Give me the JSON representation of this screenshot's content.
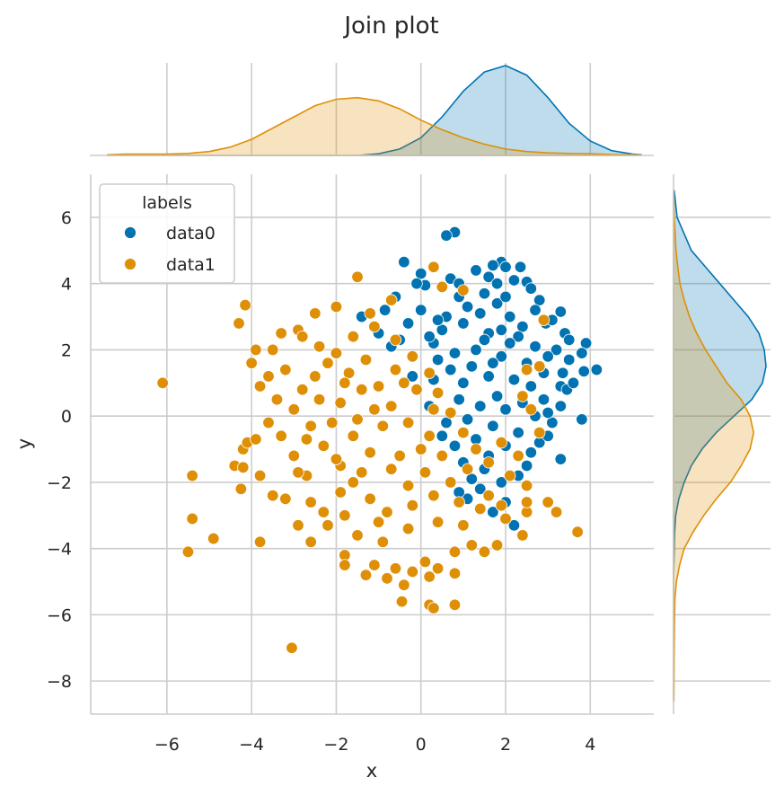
{
  "chart_data": {
    "type": "scatter",
    "title": "Join plot",
    "xlabel": "x",
    "ylabel": "y",
    "xlim": [
      -7.8,
      5.5
    ],
    "ylim": [
      -9.0,
      7.3
    ],
    "xticks": [
      -6,
      -4,
      -2,
      0,
      2,
      4
    ],
    "yticks": [
      6,
      4,
      2,
      0,
      -2,
      -4,
      -6,
      -8
    ],
    "xtick_labels": [
      "−6",
      "−4",
      "−2",
      "0",
      "2",
      "4"
    ],
    "ytick_labels": [
      "6",
      "4",
      "2",
      "0",
      "−2",
      "−4",
      "−6",
      "−8"
    ],
    "grid": true,
    "legend": {
      "title": "labels",
      "position": "top-left"
    },
    "series": [
      {
        "name": "data0",
        "color": "#0173b2",
        "points": [
          [
            0.8,
            5.55
          ],
          [
            0.6,
            5.45
          ],
          [
            -0.4,
            4.65
          ],
          [
            1.9,
            4.65
          ],
          [
            2.0,
            4.5
          ],
          [
            1.7,
            4.55
          ],
          [
            2.35,
            4.5
          ],
          [
            1.3,
            4.4
          ],
          [
            0.0,
            4.3
          ],
          [
            2.2,
            4.1
          ],
          [
            0.7,
            4.15
          ],
          [
            1.6,
            4.2
          ],
          [
            2.5,
            4.05
          ],
          [
            1.8,
            4.0
          ],
          [
            2.6,
            3.85
          ],
          [
            0.1,
            3.95
          ],
          [
            -0.6,
            3.6
          ],
          [
            1.5,
            3.7
          ],
          [
            0.9,
            3.6
          ],
          [
            2.8,
            3.5
          ],
          [
            3.3,
            3.15
          ],
          [
            -0.85,
            3.2
          ],
          [
            -1.4,
            3.0
          ],
          [
            2.95,
            2.8
          ],
          [
            3.1,
            2.9
          ],
          [
            -1.0,
            2.5
          ],
          [
            3.4,
            2.5
          ],
          [
            3.5,
            2.3
          ],
          [
            3.9,
            2.2
          ],
          [
            3.8,
            1.9
          ],
          [
            3.2,
            2.0
          ],
          [
            4.15,
            1.4
          ],
          [
            3.85,
            1.35
          ],
          [
            3.35,
            1.3
          ],
          [
            3.5,
            1.7
          ],
          [
            3.3,
            0.9
          ],
          [
            3.45,
            0.8
          ],
          [
            2.9,
            0.5
          ],
          [
            3.3,
            0.3
          ],
          [
            3.1,
            -0.2
          ],
          [
            3.0,
            0.1
          ],
          [
            3.8,
            -0.1
          ],
          [
            2.8,
            -0.8
          ],
          [
            2.6,
            -1.1
          ],
          [
            3.3,
            -1.3
          ],
          [
            2.3,
            -1.8
          ],
          [
            1.5,
            -1.6
          ],
          [
            1.9,
            -2.0
          ],
          [
            1.4,
            -2.2
          ],
          [
            2.5,
            -2.1
          ],
          [
            2.0,
            -2.6
          ],
          [
            1.7,
            -2.9
          ],
          [
            2.2,
            -3.3
          ],
          [
            1.1,
            -2.5
          ],
          [
            0.9,
            -2.3
          ],
          [
            -0.7,
            2.1
          ],
          [
            0.3,
            2.2
          ],
          [
            1.0,
            2.8
          ],
          [
            0.2,
            2.4
          ],
          [
            0.5,
            2.6
          ],
          [
            1.4,
            3.1
          ],
          [
            1.8,
            3.4
          ],
          [
            2.1,
            3.0
          ],
          [
            2.4,
            2.7
          ],
          [
            1.1,
            3.3
          ],
          [
            0.6,
            3.0
          ],
          [
            -0.3,
            2.8
          ],
          [
            0.0,
            3.2
          ],
          [
            1.6,
            2.5
          ],
          [
            2.3,
            2.4
          ],
          [
            2.7,
            2.1
          ],
          [
            1.3,
            2.0
          ],
          [
            0.8,
            1.9
          ],
          [
            0.4,
            1.7
          ],
          [
            1.9,
            1.8
          ],
          [
            2.5,
            1.6
          ],
          [
            2.9,
            1.3
          ],
          [
            3.0,
            1.8
          ],
          [
            1.2,
            1.5
          ],
          [
            0.7,
            1.4
          ],
          [
            1.6,
            1.2
          ],
          [
            2.2,
            1.1
          ],
          [
            2.6,
            0.9
          ],
          [
            1.0,
            1.0
          ],
          [
            0.3,
            1.1
          ],
          [
            1.8,
            0.6
          ],
          [
            2.4,
            0.4
          ],
          [
            0.9,
            0.5
          ],
          [
            1.4,
            0.3
          ],
          [
            2.0,
            0.2
          ],
          [
            2.7,
            0.0
          ],
          [
            1.1,
            -0.1
          ],
          [
            0.6,
            -0.2
          ],
          [
            1.7,
            -0.3
          ],
          [
            2.3,
            -0.5
          ],
          [
            1.3,
            -0.7
          ],
          [
            0.8,
            -0.9
          ],
          [
            2.0,
            -0.9
          ],
          [
            1.6,
            -1.2
          ],
          [
            1.0,
            -1.4
          ],
          [
            0.5,
            -0.6
          ],
          [
            0.2,
            0.3
          ],
          [
            -0.2,
            1.2
          ],
          [
            -0.5,
            2.3
          ],
          [
            2.0,
            3.6
          ],
          [
            2.7,
            3.2
          ],
          [
            0.9,
            4.0
          ],
          [
            -0.1,
            4.0
          ],
          [
            3.6,
            1.0
          ],
          [
            3.0,
            -0.6
          ],
          [
            2.5,
            -1.5
          ],
          [
            1.2,
            -1.9
          ],
          [
            2.1,
            2.2
          ],
          [
            1.5,
            2.3
          ],
          [
            0.4,
            2.9
          ],
          [
            1.9,
            2.6
          ],
          [
            2.8,
            1.5
          ],
          [
            1.7,
            1.6
          ]
        ]
      },
      {
        "name": "data1",
        "color": "#de8f05",
        "points": [
          [
            -6.1,
            1.0
          ],
          [
            -5.5,
            -4.1
          ],
          [
            -5.4,
            -1.8
          ],
          [
            -5.4,
            -3.1
          ],
          [
            -4.9,
            -3.7
          ],
          [
            -4.4,
            -1.5
          ],
          [
            -4.25,
            -2.2
          ],
          [
            -4.3,
            2.8
          ],
          [
            -4.2,
            -1.0
          ],
          [
            -4.15,
            3.35
          ],
          [
            -4.0,
            1.6
          ],
          [
            -3.9,
            2.0
          ],
          [
            -3.8,
            -3.8
          ],
          [
            -3.8,
            -1.8
          ],
          [
            -4.2,
            -1.55
          ],
          [
            -4.1,
            -0.8
          ],
          [
            -3.3,
            2.5
          ],
          [
            -2.9,
            2.6
          ],
          [
            -3.05,
            -7.0
          ],
          [
            -3.2,
            -2.5
          ],
          [
            -2.6,
            -3.8
          ],
          [
            -2.3,
            -2.9
          ],
          [
            -1.8,
            -4.2
          ],
          [
            -1.8,
            -4.5
          ],
          [
            -1.3,
            -4.8
          ],
          [
            -1.1,
            -4.5
          ],
          [
            -0.8,
            -4.9
          ],
          [
            -0.6,
            -4.6
          ],
          [
            -0.4,
            -5.1
          ],
          [
            -0.2,
            -4.7
          ],
          [
            0.1,
            -4.4
          ],
          [
            0.2,
            -4.85
          ],
          [
            -0.45,
            -5.6
          ],
          [
            0.2,
            -5.7
          ],
          [
            0.3,
            -5.8
          ],
          [
            0.8,
            -5.7
          ],
          [
            0.4,
            -4.6
          ],
          [
            0.8,
            -4.1
          ],
          [
            0.8,
            -4.75
          ],
          [
            1.2,
            -3.9
          ],
          [
            1.5,
            -4.1
          ],
          [
            1.8,
            -3.9
          ],
          [
            2.4,
            -3.6
          ],
          [
            2.0,
            -3.1
          ],
          [
            2.5,
            -2.9
          ],
          [
            2.5,
            -2.6
          ],
          [
            3.2,
            -2.9
          ],
          [
            3.0,
            -2.6
          ],
          [
            3.7,
            -3.5
          ],
          [
            2.5,
            -2.1
          ],
          [
            2.1,
            -1.8
          ],
          [
            1.6,
            -1.4
          ],
          [
            2.3,
            -1.2
          ],
          [
            1.9,
            -0.8
          ],
          [
            2.8,
            -0.5
          ],
          [
            2.6,
            0.2
          ],
          [
            2.4,
            0.6
          ],
          [
            2.8,
            1.5
          ],
          [
            2.5,
            1.4
          ],
          [
            2.9,
            2.9
          ],
          [
            -1.5,
            4.2
          ],
          [
            0.3,
            4.5
          ],
          [
            0.5,
            3.9
          ],
          [
            1.0,
            3.8
          ],
          [
            -0.7,
            3.5
          ],
          [
            -1.2,
            3.1
          ],
          [
            -2.0,
            3.3
          ],
          [
            -2.5,
            3.1
          ],
          [
            -2.8,
            2.4
          ],
          [
            -3.5,
            2.0
          ],
          [
            -3.6,
            1.2
          ],
          [
            -3.8,
            0.9
          ],
          [
            -3.4,
            0.5
          ],
          [
            -3.6,
            -0.2
          ],
          [
            -3.3,
            -0.6
          ],
          [
            -3.0,
            -1.2
          ],
          [
            -2.7,
            -1.8
          ],
          [
            -3.5,
            -2.4
          ],
          [
            -2.6,
            -2.6
          ],
          [
            -2.2,
            -3.3
          ],
          [
            -1.5,
            -3.6
          ],
          [
            -0.9,
            -3.8
          ],
          [
            -0.3,
            -3.4
          ],
          [
            0.4,
            -3.2
          ],
          [
            1.0,
            -3.3
          ],
          [
            1.4,
            -2.8
          ],
          [
            -2.4,
            2.1
          ],
          [
            -2.2,
            1.6
          ],
          [
            -2.5,
            1.2
          ],
          [
            -2.8,
            0.8
          ],
          [
            -3.0,
            0.2
          ],
          [
            -2.6,
            -0.3
          ],
          [
            -2.3,
            -0.9
          ],
          [
            -1.9,
            -1.5
          ],
          [
            -1.6,
            -2.0
          ],
          [
            -1.2,
            -2.5
          ],
          [
            -0.8,
            -2.9
          ],
          [
            -0.2,
            -2.7
          ],
          [
            0.3,
            -2.4
          ],
          [
            0.7,
            -2.0
          ],
          [
            1.1,
            -1.6
          ],
          [
            1.3,
            -1.0
          ],
          [
            1.0,
            -0.5
          ],
          [
            0.7,
            0.1
          ],
          [
            0.4,
            0.7
          ],
          [
            0.2,
            1.3
          ],
          [
            -0.2,
            1.8
          ],
          [
            -0.6,
            2.3
          ],
          [
            -1.1,
            2.7
          ],
          [
            -1.6,
            2.4
          ],
          [
            -2.0,
            1.9
          ],
          [
            -1.7,
            1.3
          ],
          [
            -1.4,
            0.8
          ],
          [
            -1.9,
            0.4
          ],
          [
            -2.1,
            -0.2
          ],
          [
            -1.6,
            -0.6
          ],
          [
            -1.2,
            -1.1
          ],
          [
            -0.7,
            -1.6
          ],
          [
            -0.3,
            -2.1
          ],
          [
            0.1,
            -1.7
          ],
          [
            0.5,
            -1.2
          ],
          [
            0.2,
            -0.6
          ],
          [
            -0.3,
            -0.2
          ],
          [
            -0.7,
            0.3
          ],
          [
            -1.0,
            0.9
          ],
          [
            -0.6,
            1.4
          ],
          [
            -1.3,
            1.7
          ],
          [
            -0.9,
            -0.3
          ],
          [
            -1.5,
            -0.1
          ],
          [
            -1.8,
            1.0
          ],
          [
            -2.4,
            0.5
          ],
          [
            -2.7,
            -0.7
          ],
          [
            -2.0,
            -1.3
          ],
          [
            -1.4,
            -1.7
          ],
          [
            -0.5,
            -1.2
          ],
          [
            0.0,
            -1.0
          ],
          [
            0.3,
            0.2
          ],
          [
            -0.1,
            0.8
          ],
          [
            -0.4,
            1.0
          ],
          [
            -1.1,
            0.2
          ],
          [
            -1.9,
            -2.3
          ],
          [
            -2.9,
            -1.7
          ],
          [
            -3.2,
            1.4
          ],
          [
            -3.9,
            -0.7
          ],
          [
            1.6,
            -2.4
          ],
          [
            1.9,
            -2.7
          ],
          [
            0.9,
            -2.6
          ],
          [
            -1.0,
            -3.2
          ],
          [
            -1.8,
            -3.0
          ],
          [
            -2.9,
            -3.3
          ]
        ]
      }
    ],
    "marginal_x": {
      "grid": [
        -7.4,
        -7.0,
        -6.5,
        -6.0,
        -5.5,
        -5.0,
        -4.5,
        -4.0,
        -3.5,
        -3.0,
        -2.5,
        -2.0,
        -1.5,
        -1.0,
        -0.5,
        0.0,
        0.5,
        1.0,
        1.5,
        2.0,
        2.5,
        3.0,
        3.5,
        4.0,
        4.5,
        5.0,
        5.2
      ],
      "data0": [
        0,
        0,
        0,
        0,
        0,
        0,
        0,
        0,
        0,
        0,
        0,
        0,
        0,
        0.005,
        0.02,
        0.055,
        0.12,
        0.2,
        0.26,
        0.28,
        0.25,
        0.18,
        0.1,
        0.045,
        0.015,
        0.004,
        0.002
      ],
      "data1": [
        0.002,
        0.004,
        0.004,
        0.004,
        0.006,
        0.012,
        0.026,
        0.05,
        0.085,
        0.12,
        0.155,
        0.175,
        0.18,
        0.17,
        0.145,
        0.11,
        0.08,
        0.055,
        0.035,
        0.02,
        0.012,
        0.008,
        0.006,
        0.005,
        0.003,
        0.002,
        0.001
      ]
    },
    "marginal_y": {
      "grid": [
        6.8,
        6.0,
        5.0,
        4.5,
        4.0,
        3.5,
        3.0,
        2.5,
        2.0,
        1.5,
        1.0,
        0.5,
        0.0,
        -0.5,
        -1.0,
        -1.5,
        -2.0,
        -2.5,
        -3.0,
        -3.5,
        -4.0,
        -4.5,
        -5.0,
        -5.5,
        -6.0,
        -7.0,
        -8.6
      ],
      "data0": [
        0.002,
        0.01,
        0.05,
        0.09,
        0.13,
        0.17,
        0.21,
        0.24,
        0.255,
        0.26,
        0.25,
        0.22,
        0.17,
        0.12,
        0.08,
        0.05,
        0.03,
        0.015,
        0.006,
        0.003,
        0.002,
        0.001,
        0,
        0,
        0,
        0,
        0
      ],
      "data1": [
        0,
        0.002,
        0.007,
        0.012,
        0.018,
        0.03,
        0.045,
        0.065,
        0.09,
        0.12,
        0.15,
        0.19,
        0.215,
        0.225,
        0.215,
        0.19,
        0.16,
        0.12,
        0.085,
        0.055,
        0.03,
        0.017,
        0.008,
        0.004,
        0.003,
        0.002,
        0.001
      ]
    }
  }
}
